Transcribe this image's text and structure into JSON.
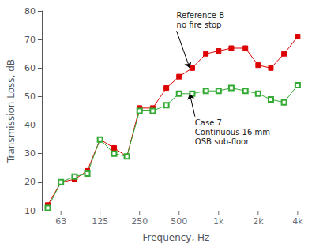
{
  "chart_data": {
    "type": "line",
    "xlabel": "Frequency, Hz",
    "ylabel": "Transmission Loss, dB",
    "x": [
      50,
      63,
      80,
      100,
      125,
      160,
      200,
      250,
      315,
      400,
      500,
      630,
      800,
      1000,
      1250,
      1600,
      2000,
      2500,
      3150,
      4000
    ],
    "series": [
      {
        "color": "#dd0000",
        "marker": "square",
        "values": [
          12,
          20,
          21,
          24,
          35,
          32,
          29,
          46,
          46,
          53,
          57,
          60,
          65,
          66,
          67,
          67,
          61,
          60,
          65,
          71
        ]
      },
      {
        "color": "#33aa33",
        "marker": "open_square",
        "values": [
          11,
          20,
          22,
          23,
          35,
          30,
          29,
          45,
          45,
          47,
          51,
          51,
          52,
          52,
          53,
          52,
          51,
          49,
          48,
          54
        ]
      }
    ],
    "log": "x",
    "xlim": [
      45,
      5000
    ],
    "xticks": [
      63,
      125,
      250,
      500,
      {
        "value": 1000,
        "label": "1k"
      },
      {
        "value": 2000,
        "label": "2k"
      },
      {
        "value": 4000,
        "label": "4k"
      }
    ],
    "ylim": [
      10,
      80
    ],
    "yticks": [
      10,
      20,
      30,
      40,
      50,
      60,
      70,
      80
    ],
    "grid": false,
    "annotations": [
      {
        "text": "Reference B\nno fire stop",
        "xy": [
          602.5595860743578,
          60
        ],
        "xytext": [
          478.6300923226383,
          73
        ]
      },
      {
        "text": "Case 7\nContinuous 16 mm\nOSB sub-floor",
        "xy": [
          602.5595860743578,
          51
        ],
        "xytext": [
          660.6934480075959,
          43
        ]
      }
    ]
  }
}
